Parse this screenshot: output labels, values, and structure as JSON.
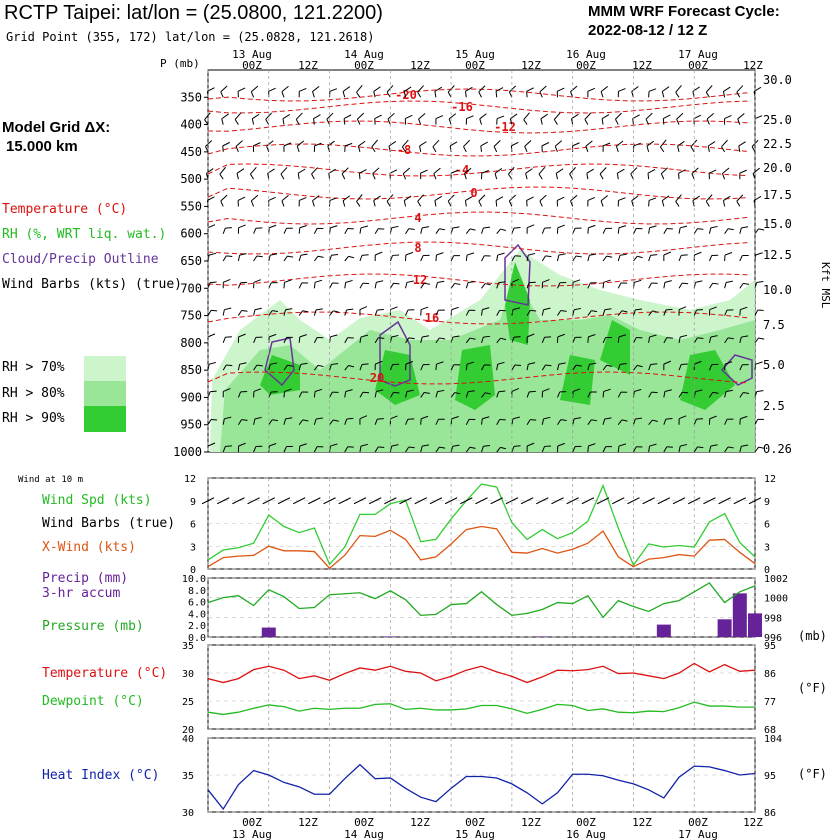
{
  "header": {
    "title": "RCTP Taipei:  lat/lon = (25.0800, 121.2200)",
    "grid_point": "Grid Point (355, 172) lat/lon = (25.0828, 121.2618)",
    "cycle_line1": "MMM WRF Forecast Cycle:",
    "cycle_line2": "2022-08-12 / 12  Z",
    "model_grid_line1": "Model Grid ΔX:",
    "model_grid_line2": "15.000 km"
  },
  "colors": {
    "temperature": "#dd1111",
    "rh": "#33cc33",
    "cloud": "#663399",
    "wind": "#000000",
    "xwind": "#dd5511",
    "precip": "#662299",
    "pressure": "#22aa22",
    "dewpoint": "#22bb22",
    "heat_index": "#1122aa"
  },
  "legends": {
    "sounding": [
      "Temperature (°C)",
      "RH (%, WRT liq. wat.)",
      "Cloud/Precip Outline",
      "Wind Barbs (kts) (true)"
    ],
    "rh_levels": [
      "RH > 70%",
      "RH > 80%",
      "RH > 90%"
    ],
    "wind_at_10m": "Wind at 10 m",
    "wind_panel": [
      "Wind Spd (kts)",
      "Wind Barbs (true)",
      "X-Wind (kts)"
    ],
    "precip_panel": [
      "Precip (mm)",
      "3-hr accum",
      "Pressure (mb)"
    ],
    "temp_panel": [
      "Temperature (°C)",
      "Dewpoint (°C)"
    ],
    "heat_panel": [
      "Heat Index (°C)"
    ]
  },
  "time_axis": {
    "date_labels": [
      "13 Aug",
      "14 Aug",
      "15 Aug",
      "16 Aug",
      "17 Aug"
    ],
    "hour_labels": [
      "00Z",
      "12Z",
      "00Z",
      "12Z",
      "00Z",
      "12Z",
      "00Z",
      "12Z",
      "00Z",
      "12Z"
    ]
  },
  "chart_data": [
    {
      "type": "heatmap",
      "name": "sounding",
      "y_label": "P (mb)",
      "y_right_label": "Kft MSL",
      "pressure_levels": [
        350,
        400,
        450,
        500,
        550,
        600,
        650,
        700,
        750,
        800,
        850,
        900,
        950,
        1000
      ],
      "height_kft": [
        "30.0",
        "25.0",
        "22.5",
        "20.0",
        "17.5",
        "15.0",
        "12.5",
        "10.0",
        "7.5",
        "5.0",
        "2.5",
        "0.26"
      ],
      "temperature_contours_C": [
        -20,
        -16,
        -12,
        -8,
        -4,
        0,
        4,
        8,
        12,
        16,
        20
      ],
      "grid": true
    },
    {
      "type": "line",
      "name": "wind",
      "x_hours": [
        0,
        3,
        6,
        9,
        12,
        15,
        18,
        21,
        24,
        27,
        30,
        33,
        36,
        39,
        42,
        45,
        48,
        51,
        54,
        57,
        60,
        63,
        66,
        69,
        72,
        75,
        78,
        81,
        84,
        87,
        90,
        93,
        96,
        99,
        102,
        105,
        108
      ],
      "series": [
        {
          "name": "Wind Spd (kts)",
          "values": [
            1.2,
            2.5,
            2.8,
            3.4,
            7.1,
            5.6,
            4.8,
            5.4,
            0.6,
            2.9,
            7.2,
            7.2,
            8.6,
            9.1,
            3.6,
            3.9,
            6.6,
            9.0,
            11.2,
            10.8,
            6.1,
            3.9,
            5.2,
            4.0,
            4.8,
            6.3,
            11.0,
            5.4,
            0.5,
            3.3,
            2.9,
            3.1,
            2.9,
            6.2,
            7.3,
            3.5,
            1.6
          ]
        },
        {
          "name": "X-Wind (kts)",
          "values": [
            0.3,
            1.5,
            1.7,
            1.8,
            3.0,
            2.4,
            2.4,
            2.3,
            0.1,
            1.8,
            4.4,
            4.3,
            5.1,
            3.9,
            1.2,
            1.6,
            3.3,
            5.2,
            5.6,
            5.3,
            2.2,
            2.1,
            2.7,
            2.1,
            2.6,
            3.4,
            5.0,
            1.6,
            0.3,
            1.3,
            1.5,
            1.9,
            1.7,
            3.8,
            3.9,
            2.2,
            0.7
          ]
        }
      ],
      "ylim": [
        0,
        12
      ],
      "yticks": [
        0,
        3,
        6,
        9,
        12
      ]
    },
    {
      "type": "bar",
      "name": "precip_pressure",
      "precip_mm": [
        {
          "x": 12,
          "value": 1.6
        },
        {
          "x": 36,
          "value": 0.1
        },
        {
          "x": 66,
          "value": 0.1
        },
        {
          "x": 90,
          "value": 2.1
        },
        {
          "x": 102,
          "value": 3.0
        },
        {
          "x": 105,
          "value": 7.4
        },
        {
          "x": 108,
          "value": 4.0
        }
      ],
      "pressure_mb": [
        999.5,
        1000.0,
        1000.2,
        999.2,
        1000.8,
        1000.1,
        998.9,
        999.0,
        1000.3,
        1000.4,
        1000.5,
        999.9,
        1000.7,
        999.8,
        998.2,
        998.3,
        999.3,
        999.4,
        1000.6,
        999.3,
        998.2,
        998.4,
        998.8,
        999.5,
        999.4,
        1000.2,
        998.0,
        999.7,
        999.1,
        998.6,
        999.4,
        999.7,
        1000.6,
        1001.5,
        999.5,
        1000.6,
        1001.2
      ],
      "precip_ylim": [
        0,
        10
      ],
      "precip_yticks": [
        "0.0",
        "2.0",
        "4.0",
        "6.0",
        "8.0",
        "10.0"
      ],
      "pressure_ylim": [
        996,
        1002
      ],
      "pressure_yticks": [
        996,
        998,
        1000,
        1002
      ],
      "pressure_unit": "(mb)"
    },
    {
      "type": "line",
      "name": "temperature_dewpoint",
      "series": [
        {
          "name": "Temperature (°C)",
          "values": [
            29.0,
            28.3,
            29.0,
            30.6,
            31.2,
            30.5,
            29.0,
            29.5,
            28.7,
            29.9,
            30.9,
            30.5,
            31.2,
            30.3,
            30.0,
            28.6,
            29.4,
            30.5,
            31.2,
            30.2,
            29.4,
            28.3,
            29.3,
            30.5,
            30.4,
            30.6,
            31.2,
            29.9,
            30.0,
            29.5,
            29.0,
            30.0,
            31.7,
            30.2,
            31.5,
            30.3,
            30.5
          ]
        },
        {
          "name": "Dewpoint (°C)",
          "values": [
            23.0,
            22.6,
            23.0,
            23.7,
            24.3,
            24.0,
            23.2,
            23.7,
            23.5,
            23.7,
            23.7,
            24.4,
            24.5,
            23.5,
            23.7,
            23.4,
            23.4,
            23.6,
            24.2,
            24.2,
            23.6,
            22.8,
            23.5,
            24.4,
            24.2,
            23.3,
            23.6,
            23.0,
            22.9,
            23.2,
            23.1,
            23.8,
            24.8,
            24.1,
            24.1,
            23.9,
            23.9
          ]
        }
      ],
      "ylim": [
        20,
        35
      ],
      "yticks": [
        20,
        25,
        30,
        35
      ],
      "f_ticks": [
        68,
        77,
        86,
        95
      ],
      "f_unit": "(°F)"
    },
    {
      "type": "line",
      "name": "heat_index",
      "series": [
        {
          "name": "Heat Index (°C)",
          "values": [
            33.0,
            30.4,
            33.7,
            35.6,
            35.0,
            34.0,
            33.4,
            32.4,
            32.4,
            34.5,
            36.4,
            34.5,
            34.6,
            33.2,
            32.0,
            31.4,
            33.2,
            34.8,
            34.8,
            34.6,
            33.8,
            32.6,
            31.1,
            32.6,
            35.1,
            35.1,
            34.9,
            34.3,
            33.8,
            33.0,
            31.9,
            34.7,
            36.2,
            36.1,
            35.6,
            35.0,
            35.2
          ]
        }
      ],
      "ylim": [
        30,
        40
      ],
      "yticks": [
        30,
        35,
        40
      ],
      "f_ticks": [
        86,
        95,
        104
      ],
      "f_unit": "(°F)"
    }
  ]
}
